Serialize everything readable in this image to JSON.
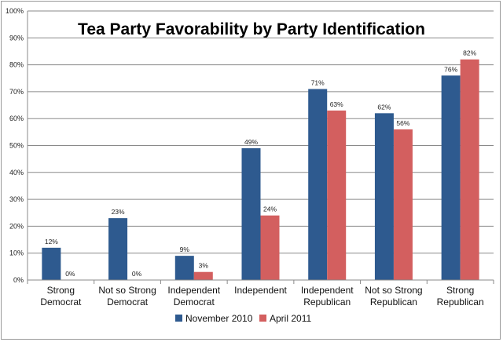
{
  "chart_data": {
    "type": "bar",
    "title": "Tea Party Favorability by Party Identification",
    "categories": [
      [
        "Strong",
        "Democrat"
      ],
      [
        "Not so Strong",
        "Democrat"
      ],
      [
        "Independent",
        "Democrat"
      ],
      [
        "Independent"
      ],
      [
        "Independent",
        "Republican"
      ],
      [
        "Not so Strong",
        "Republican"
      ],
      [
        "Strong",
        "Republican"
      ]
    ],
    "series": [
      {
        "name": "November 2010",
        "color": "#2e5a8f",
        "values": [
          12,
          23,
          9,
          49,
          71,
          62,
          76
        ],
        "labels": [
          "12%",
          "23%",
          "9%",
          "49%",
          "71%",
          "62%",
          "76%"
        ]
      },
      {
        "name": "April 2011",
        "color": "#d35f5f",
        "values": [
          0,
          0,
          3,
          24,
          63,
          56,
          82
        ],
        "labels": [
          "0%",
          "0%",
          "3%",
          "24%",
          "63%",
          "56%",
          "82%"
        ]
      }
    ],
    "ylim": [
      0,
      100
    ],
    "yticks": [
      "0%",
      "10%",
      "20%",
      "30%",
      "40%",
      "50%",
      "60%",
      "70%",
      "80%",
      "90%",
      "100%"
    ],
    "grid": true,
    "legend_position": "bottom"
  }
}
